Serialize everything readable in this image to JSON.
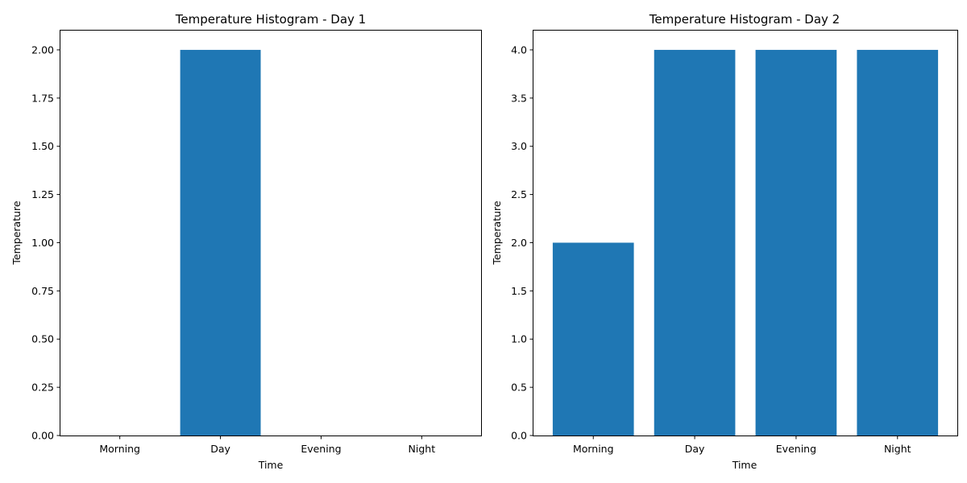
{
  "colors": {
    "bar": "#1f77b4",
    "background": "#ffffff",
    "axes": "#000000"
  },
  "chart_data": [
    {
      "type": "bar",
      "title": "Temperature Histogram - Day 1",
      "xlabel": "Time",
      "ylabel": "Temperature",
      "categories": [
        "Morning",
        "Day",
        "Evening",
        "Night"
      ],
      "values": [
        0,
        2,
        0,
        0
      ],
      "ylim": [
        0,
        2.1
      ],
      "yticks": [
        0.0,
        0.25,
        0.5,
        0.75,
        1.0,
        1.25,
        1.5,
        1.75,
        2.0
      ],
      "ytick_labels": [
        "0.00",
        "0.25",
        "0.50",
        "0.75",
        "1.00",
        "1.25",
        "1.50",
        "1.75",
        "2.00"
      ],
      "grid": false,
      "legend": false
    },
    {
      "type": "bar",
      "title": "Temperature Histogram - Day 2",
      "xlabel": "Time",
      "ylabel": "Temperature",
      "categories": [
        "Morning",
        "Day",
        "Evening",
        "Night"
      ],
      "values": [
        2,
        4,
        4,
        4
      ],
      "ylim": [
        0,
        4.2
      ],
      "yticks": [
        0.0,
        0.5,
        1.0,
        1.5,
        2.0,
        2.5,
        3.0,
        3.5,
        4.0
      ],
      "ytick_labels": [
        "0.0",
        "0.5",
        "1.0",
        "1.5",
        "2.0",
        "2.5",
        "3.0",
        "3.5",
        "4.0"
      ],
      "grid": false,
      "legend": false
    }
  ]
}
